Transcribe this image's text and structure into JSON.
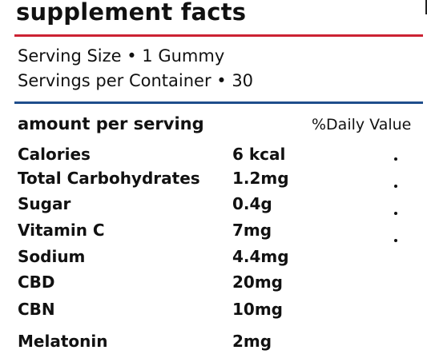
{
  "title": "supplement facts",
  "serving": {
    "size": "Serving Size • 1 Gummy",
    "per_container": "Servings per Container • 30"
  },
  "header": {
    "amount_per_serving": "amount per serving",
    "daily_value": "%Daily Value"
  },
  "nutrients": [
    {
      "name": "Calories",
      "amount": "6 kcal"
    },
    {
      "name": "Total Carbohydrates",
      "amount": "1.2mg"
    },
    {
      "name": "Sugar",
      "amount": "0.4g"
    },
    {
      "name": "Vitamin C",
      "amount": "7mg"
    },
    {
      "name": "Sodium",
      "amount": "4.4mg"
    },
    {
      "name": "CBD",
      "amount": "20mg"
    },
    {
      "name": "CBN",
      "amount": "10mg"
    },
    {
      "name": "Melatonin",
      "amount": "2mg"
    }
  ],
  "colors": {
    "top_rule": "#cc2233",
    "bottom_rule": "#1f4e8c"
  }
}
